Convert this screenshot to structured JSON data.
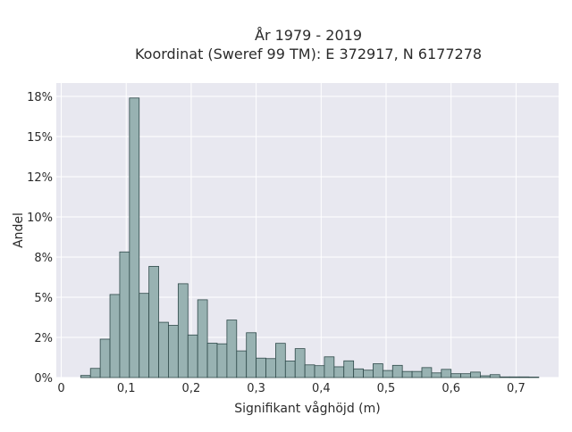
{
  "chart_data": {
    "type": "bar",
    "title": "År 1979 - 2019",
    "subtitle": "Koordinat (Sweref 99 TM): E 372917, N 6177278",
    "xlabel": "Signifikant våghöjd (m)",
    "ylabel": "Andel",
    "xlim": [
      0,
      0.75
    ],
    "ylim": [
      0,
      0.175
    ],
    "x_ticks": [
      {
        "value": 0,
        "label": "0"
      },
      {
        "value": 0.1,
        "label": "0,1"
      },
      {
        "value": 0.2,
        "label": "0,2"
      },
      {
        "value": 0.3,
        "label": "0,3"
      },
      {
        "value": 0.4,
        "label": "0,4"
      },
      {
        "value": 0.5,
        "label": "0,5"
      },
      {
        "value": 0.6,
        "label": "0,6"
      },
      {
        "value": 0.7,
        "label": "0,7"
      }
    ],
    "y_ticks": [
      {
        "value": 0,
        "label": "0%"
      },
      {
        "value": 0.025,
        "label": "2%"
      },
      {
        "value": 0.05,
        "label": "5%"
      },
      {
        "value": 0.075,
        "label": "8%"
      },
      {
        "value": 0.1,
        "label": "10%"
      },
      {
        "value": 0.125,
        "label": "12%"
      },
      {
        "value": 0.15,
        "label": "15%"
      },
      {
        "value": 0.175,
        "label": "18%"
      }
    ],
    "bin_width": 0.015,
    "bins_start": [
      0.03,
      0.045,
      0.06,
      0.075,
      0.09,
      0.105,
      0.12,
      0.135,
      0.15,
      0.165,
      0.18,
      0.195,
      0.21,
      0.225,
      0.24,
      0.255,
      0.27,
      0.285,
      0.3,
      0.315,
      0.33,
      0.345,
      0.36,
      0.375,
      0.39,
      0.405,
      0.42,
      0.435,
      0.45,
      0.465,
      0.48,
      0.495,
      0.51,
      0.525,
      0.54,
      0.555,
      0.57,
      0.585,
      0.6,
      0.615,
      0.63,
      0.645,
      0.66,
      0.675,
      0.69,
      0.705,
      0.72
    ],
    "values": [
      0.0013,
      0.0057,
      0.0239,
      0.0517,
      0.0782,
      0.174,
      0.0524,
      0.0692,
      0.0344,
      0.0325,
      0.0584,
      0.0265,
      0.0484,
      0.0214,
      0.021,
      0.0358,
      0.0166,
      0.0279,
      0.0121,
      0.0118,
      0.0213,
      0.0103,
      0.018,
      0.0079,
      0.0074,
      0.0129,
      0.0067,
      0.0104,
      0.0054,
      0.0046,
      0.0086,
      0.0044,
      0.0076,
      0.0038,
      0.0038,
      0.0062,
      0.0029,
      0.0051,
      0.0024,
      0.0024,
      0.0034,
      0.0011,
      0.0018,
      0.0004,
      0.0004,
      0.0004,
      0.0003
    ],
    "bar_color": "#98b2b2",
    "bar_edge_color": "#2f4a4a",
    "background_color": "#e8e8f0",
    "grid": true,
    "legend": false
  }
}
